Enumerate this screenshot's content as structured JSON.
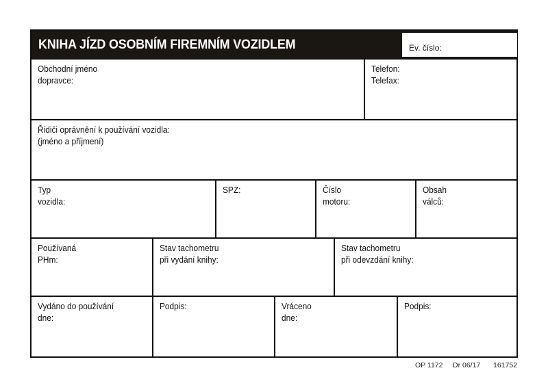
{
  "header": {
    "title": "KNIHA JÍZD OSOBNÍM FIREMNÍM VOZIDLEM",
    "ev_cislo_label": "Ev. číslo:"
  },
  "row1": {
    "company": "Obchodní jméno\ndopravce:",
    "phone": "Telefon:\nTelefax:"
  },
  "row2": {
    "drivers": "Řidiči oprávnění k používání vozidla:\n(jméno a příjmení)"
  },
  "row3": {
    "type": "Typ\nvozidla:",
    "spz": "SPZ:",
    "engine": "Číslo\nmotoru:",
    "displacement": "Obsah\nválců:"
  },
  "row4": {
    "fuel": "Používaná\nPHm:",
    "odo_issue": "Stav tachometru\npři vydání knihy:",
    "odo_return": "Stav tachometru\npři odevzdání knihy:"
  },
  "row5": {
    "issued": "Vydáno do používání\ndne:",
    "sign1": "Podpis:",
    "returned": "Vráceno\ndne:",
    "sign2": "Podpis:"
  },
  "footer": {
    "code": "OP 1172",
    "print": "Dr 06/17",
    "number": "161752"
  }
}
